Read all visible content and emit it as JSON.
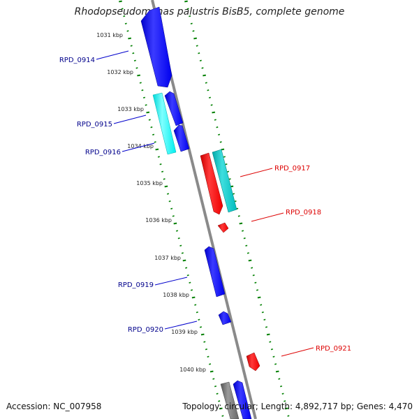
{
  "title": "Rhodopseudomonas palustris BisB5, complete genome",
  "footer": {
    "accession": "Accession: NC_007958",
    "summary": "Topology: circular; Length: 4,892,717 bp; Genes: 4,470"
  },
  "colors": {
    "reverse_cds": "#0000ff",
    "forward_cds": "#ff0000",
    "reverse_rna": "#00ffff",
    "forward_rna": "#00cccc",
    "backbone": "#8a8a8a",
    "ticks": "#008000",
    "label_blue": "#00008b",
    "label_red": "#dd0000"
  },
  "ruler": {
    "labels": [
      "1031 kbp",
      "1032 kbp",
      "1033 kbp",
      "1034 kbp",
      "1035 kbp",
      "1036 kbp",
      "1037 kbp",
      "1038 kbp",
      "1039 kbp",
      "1040 kbp"
    ]
  },
  "genes": [
    {
      "name": "RPD_0914",
      "strand": "reverse"
    },
    {
      "name": "RPD_0915",
      "strand": "reverse"
    },
    {
      "name": "RPD_0916",
      "strand": "reverse"
    },
    {
      "name": "RPD_0917",
      "strand": "forward"
    },
    {
      "name": "RPD_0918",
      "strand": "forward"
    },
    {
      "name": "RPD_0919",
      "strand": "reverse"
    },
    {
      "name": "RPD_0920",
      "strand": "reverse"
    },
    {
      "name": "RPD_0921",
      "strand": "forward"
    }
  ]
}
